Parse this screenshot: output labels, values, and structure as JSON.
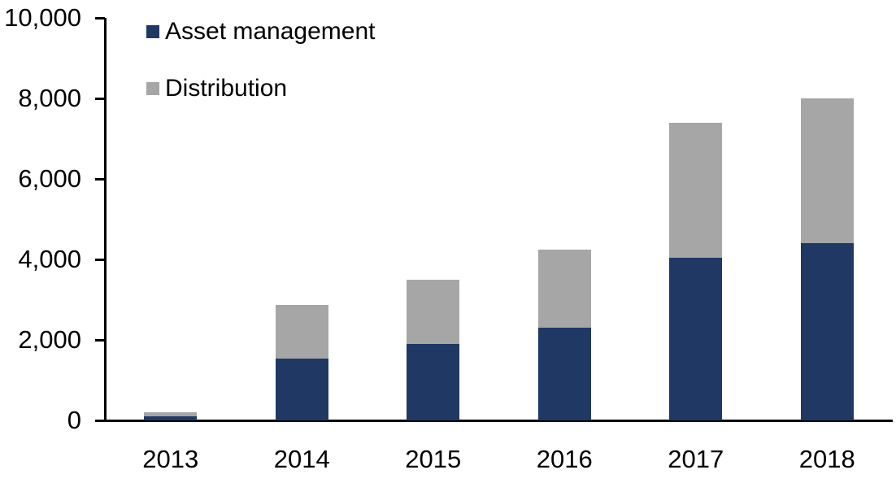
{
  "chart_data": {
    "type": "bar",
    "stacked": true,
    "title": "",
    "xlabel": "",
    "ylabel": "",
    "categories": [
      "2013",
      "2014",
      "2015",
      "2016",
      "2017",
      "2018"
    ],
    "series": [
      {
        "name": "Asset management",
        "color": "#1F3864",
        "values": [
          100,
          1530,
          1900,
          2300,
          4050,
          4400
        ]
      },
      {
        "name": "Distribution",
        "color": "#A6A6A6",
        "values": [
          100,
          1330,
          1600,
          1950,
          3350,
          3600
        ]
      }
    ],
    "stacked_totals": [
      200,
      2860,
      3500,
      4250,
      7400,
      8000
    ],
    "ylim": [
      0,
      10000
    ],
    "ytick_interval": 2000,
    "yticks": [
      0,
      2000,
      4000,
      6000,
      8000,
      10000
    ],
    "ytick_labels": [
      "0",
      "2,000",
      "4,000",
      "6,000",
      "8,000",
      "10,000"
    ],
    "grid": false,
    "legend_position": "top-left",
    "axis_color": "#000000",
    "background_color": "#FFFFFF"
  },
  "legend": {
    "items": [
      {
        "label": "Asset management",
        "color": "#1F3864"
      },
      {
        "label": "Distribution",
        "color": "#A6A6A6"
      }
    ]
  }
}
